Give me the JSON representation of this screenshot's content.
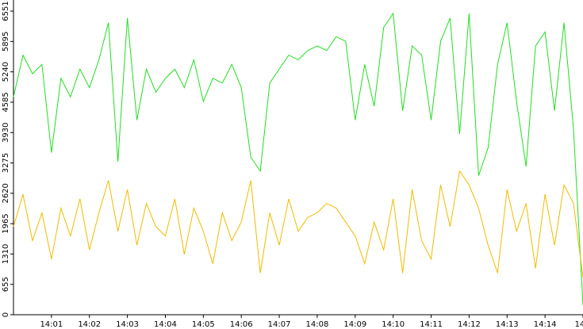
{
  "chart_data": {
    "type": "line",
    "x": [
      0,
      0.25,
      0.5,
      0.75,
      1,
      1.25,
      1.5,
      1.75,
      2,
      2.25,
      2.5,
      2.75,
      3,
      3.25,
      3.5,
      3.75,
      4,
      4.25,
      4.5,
      4.75,
      5,
      5.25,
      5.5,
      5.75,
      6,
      6.25,
      6.5,
      6.75,
      7,
      7.25,
      7.5,
      7.75,
      8,
      8.25,
      8.5,
      8.75,
      9,
      9.25,
      9.5,
      9.75,
      10,
      10.25,
      10.5,
      10.75,
      11,
      11.25,
      11.5,
      11.75,
      12,
      12.25,
      12.5,
      12.75,
      13,
      13.25,
      13.5,
      13.75,
      14,
      14.25,
      14.5,
      14.75,
      15
    ],
    "series": [
      {
        "color": "#22dd22",
        "values": [
          4700,
          5600,
          5200,
          5400,
          3500,
          5100,
          4700,
          5300,
          4900,
          5500,
          6300,
          3300,
          6400,
          4200,
          5300,
          4800,
          5100,
          5300,
          4900,
          5500,
          4600,
          5100,
          5000,
          5400,
          4900,
          3400,
          3100,
          5000,
          5300,
          5600,
          5500,
          5700,
          5800,
          5700,
          6000,
          5900,
          4200,
          5400,
          4500,
          6200,
          6500,
          4400,
          5800,
          5600,
          4200,
          5900,
          6400,
          3900,
          6500,
          3000,
          3600,
          5400,
          6300,
          4600,
          3200,
          5800,
          6100,
          4400,
          6300,
          4000,
          200
        ]
      },
      {
        "color": "#f0bb00",
        "values": [
          1900,
          2600,
          1600,
          2200,
          1200,
          2300,
          1700,
          2500,
          1400,
          2200,
          2900,
          1800,
          2700,
          1500,
          2400,
          1900,
          1700,
          2500,
          1300,
          2300,
          1800,
          1100,
          2200,
          1600,
          2000,
          2900,
          900,
          2200,
          1500,
          2500,
          1800,
          2100,
          2200,
          2400,
          2300,
          2000,
          1700,
          1100,
          2000,
          1400,
          2500,
          900,
          2700,
          1600,
          1200,
          2800,
          1900,
          3100,
          2800,
          2300,
          1500,
          900,
          2700,
          1800,
          2400,
          1000,
          2600,
          1500,
          2800,
          2400,
          800
        ]
      }
    ],
    "xlim": [
      0,
      15
    ],
    "xticks": [
      {
        "value": 1,
        "label": "14:01"
      },
      {
        "value": 2,
        "label": "14:02"
      },
      {
        "value": 3,
        "label": "14:03"
      },
      {
        "value": 4,
        "label": "14:04"
      },
      {
        "value": 5,
        "label": "14:05"
      },
      {
        "value": 6,
        "label": "14:06"
      },
      {
        "value": 7,
        "label": "14:07"
      },
      {
        "value": 8,
        "label": "14:08"
      },
      {
        "value": 9,
        "label": "14:09"
      },
      {
        "value": 10,
        "label": "14:10"
      },
      {
        "value": 11,
        "label": "14:11"
      },
      {
        "value": 12,
        "label": "14:12"
      },
      {
        "value": 13,
        "label": "14:13"
      },
      {
        "value": 14,
        "label": "14:14"
      },
      {
        "value": 15,
        "label": "14"
      }
    ],
    "ylim": [
      0,
      6551
    ],
    "yticks": [
      0,
      655,
      1310,
      1965,
      2620,
      3275,
      3930,
      4585,
      5240,
      5895,
      6551
    ]
  }
}
